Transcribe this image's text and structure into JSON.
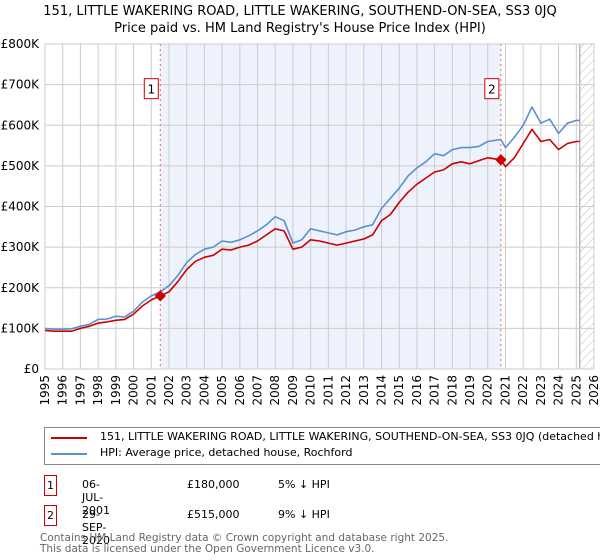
{
  "header": {
    "title": "151, LITTLE WAKERING ROAD, LITTLE WAKERING, SOUTHEND-ON-SEA, SS3 0JQ",
    "subtitle": "Price paid vs. HM Land Registry's House Price Index (HPI)"
  },
  "colors": {
    "price_line": "#cc0000",
    "hpi_line": "#5b8fd0",
    "shade": "#eef2fc",
    "grid": "#cccccc",
    "marker_line": "#ee6666"
  },
  "chart_data": {
    "type": "line",
    "title": "151, LITTLE WAKERING ROAD, LITTLE WAKERING, SOUTHEND-ON-SEA, SS3 0JQ",
    "subtitle": "Price paid vs. HM Land Registry's House Price Index (HPI)",
    "xlabel": "",
    "ylabel": "",
    "xlim": [
      1995,
      2026
    ],
    "ylim": [
      0,
      800000
    ],
    "grid": true,
    "legend_position": "bottom",
    "y_ticks": [
      {
        "value": 0,
        "label": "£0"
      },
      {
        "value": 100000,
        "label": "£100K"
      },
      {
        "value": 200000,
        "label": "£200K"
      },
      {
        "value": 300000,
        "label": "£300K"
      },
      {
        "value": 400000,
        "label": "£400K"
      },
      {
        "value": 500000,
        "label": "£500K"
      },
      {
        "value": 600000,
        "label": "£600K"
      },
      {
        "value": 700000,
        "label": "£700K"
      },
      {
        "value": 800000,
        "label": "£800K"
      }
    ],
    "x_ticks": [
      "1995",
      "1996",
      "1997",
      "1998",
      "1999",
      "2000",
      "2001",
      "2002",
      "2003",
      "2004",
      "2005",
      "2006",
      "2007",
      "2008",
      "2009",
      "2010",
      "2011",
      "2012",
      "2013",
      "2014",
      "2015",
      "2016",
      "2017",
      "2018",
      "2019",
      "2020",
      "2021",
      "2022",
      "2023",
      "2024",
      "2025",
      "2026"
    ],
    "shaded_range": [
      2001.51,
      2020.74
    ],
    "future_hatch_start": 2025.2,
    "series": [
      {
        "name": "151, LITTLE WAKERING ROAD, LITTLE WAKERING, SOUTHEND-ON-SEA, SS3 0JQ (detached house)",
        "color": "#cc0000",
        "x": [
          1995.0,
          1995.5,
          1996.0,
          1996.5,
          1997.0,
          1997.5,
          1998.0,
          1998.5,
          1999.0,
          1999.5,
          2000.0,
          2000.5,
          2001.0,
          2001.51,
          2002.0,
          2002.5,
          2003.0,
          2003.5,
          2004.0,
          2004.5,
          2005.0,
          2005.5,
          2006.0,
          2006.5,
          2007.0,
          2007.5,
          2008.0,
          2008.5,
          2009.0,
          2009.5,
          2010.0,
          2010.5,
          2011.0,
          2011.5,
          2012.0,
          2012.5,
          2013.0,
          2013.5,
          2014.0,
          2014.5,
          2015.0,
          2015.5,
          2016.0,
          2016.5,
          2017.0,
          2017.5,
          2018.0,
          2018.5,
          2019.0,
          2019.5,
          2020.0,
          2020.74,
          2021.0,
          2021.5,
          2022.0,
          2022.5,
          2023.0,
          2023.5,
          2024.0,
          2024.5,
          2025.0,
          2025.2
        ],
        "y": [
          95000,
          93000,
          93000,
          93000,
          100000,
          105000,
          113000,
          116000,
          120000,
          122000,
          135000,
          155000,
          170000,
          180000,
          190000,
          215000,
          245000,
          265000,
          275000,
          280000,
          295000,
          293000,
          300000,
          305000,
          315000,
          330000,
          345000,
          340000,
          295000,
          300000,
          318000,
          315000,
          310000,
          305000,
          310000,
          315000,
          320000,
          330000,
          365000,
          380000,
          410000,
          435000,
          455000,
          470000,
          485000,
          490000,
          505000,
          510000,
          505000,
          513000,
          520000,
          515000,
          498000,
          520000,
          555000,
          590000,
          560000,
          565000,
          540000,
          555000,
          560000,
          560000
        ]
      },
      {
        "name": "HPI: Average price, detached house, Rochford",
        "color": "#5b8fd0",
        "x": [
          1995.0,
          1995.5,
          1996.0,
          1996.5,
          1997.0,
          1997.5,
          1998.0,
          1998.5,
          1999.0,
          1999.5,
          2000.0,
          2000.5,
          2001.0,
          2001.51,
          2002.0,
          2002.5,
          2003.0,
          2003.5,
          2004.0,
          2004.5,
          2005.0,
          2005.5,
          2006.0,
          2006.5,
          2007.0,
          2007.5,
          2008.0,
          2008.5,
          2009.0,
          2009.5,
          2010.0,
          2010.5,
          2011.0,
          2011.5,
          2012.0,
          2012.5,
          2013.0,
          2013.5,
          2014.0,
          2014.5,
          2015.0,
          2015.5,
          2016.0,
          2016.5,
          2017.0,
          2017.5,
          2018.0,
          2018.5,
          2019.0,
          2019.5,
          2020.0,
          2020.74,
          2021.0,
          2021.5,
          2022.0,
          2022.5,
          2023.0,
          2023.5,
          2024.0,
          2024.5,
          2025.0,
          2025.2
        ],
        "y": [
          100000,
          98000,
          98000,
          99000,
          105000,
          110000,
          122000,
          123000,
          130000,
          128000,
          142000,
          165000,
          180000,
          190000,
          205000,
          230000,
          262000,
          282000,
          295000,
          300000,
          315000,
          312000,
          318000,
          328000,
          340000,
          355000,
          375000,
          365000,
          310000,
          318000,
          345000,
          340000,
          335000,
          330000,
          338000,
          342000,
          350000,
          355000,
          395000,
          420000,
          445000,
          475000,
          495000,
          510000,
          530000,
          525000,
          540000,
          545000,
          545000,
          548000,
          560000,
          565000,
          545000,
          570000,
          600000,
          645000,
          605000,
          615000,
          580000,
          605000,
          612000,
          612000
        ]
      }
    ],
    "annotations": [
      {
        "label": "1",
        "x": 2001.51,
        "y": 180000
      },
      {
        "label": "2",
        "x": 2020.74,
        "y": 515000
      }
    ]
  },
  "legend": {
    "items": [
      {
        "label": "151, LITTLE WAKERING ROAD, LITTLE WAKERING, SOUTHEND-ON-SEA, SS3 0JQ (detached house)",
        "color": "#cc0000"
      },
      {
        "label": "HPI: Average price, detached house, Rochford",
        "color": "#5b8fd0"
      }
    ]
  },
  "sales": [
    {
      "num": "1",
      "date": "06-JUL-2001",
      "price": "£180,000",
      "hpi": "5% ↓ HPI"
    },
    {
      "num": "2",
      "date": "29-SEP-2020",
      "price": "£515,000",
      "hpi": "9% ↓ HPI"
    }
  ],
  "footer": {
    "line1": "Contains HM Land Registry data © Crown copyright and database right 2025.",
    "line2": "This data is licensed under the Open Government Licence v3.0."
  }
}
